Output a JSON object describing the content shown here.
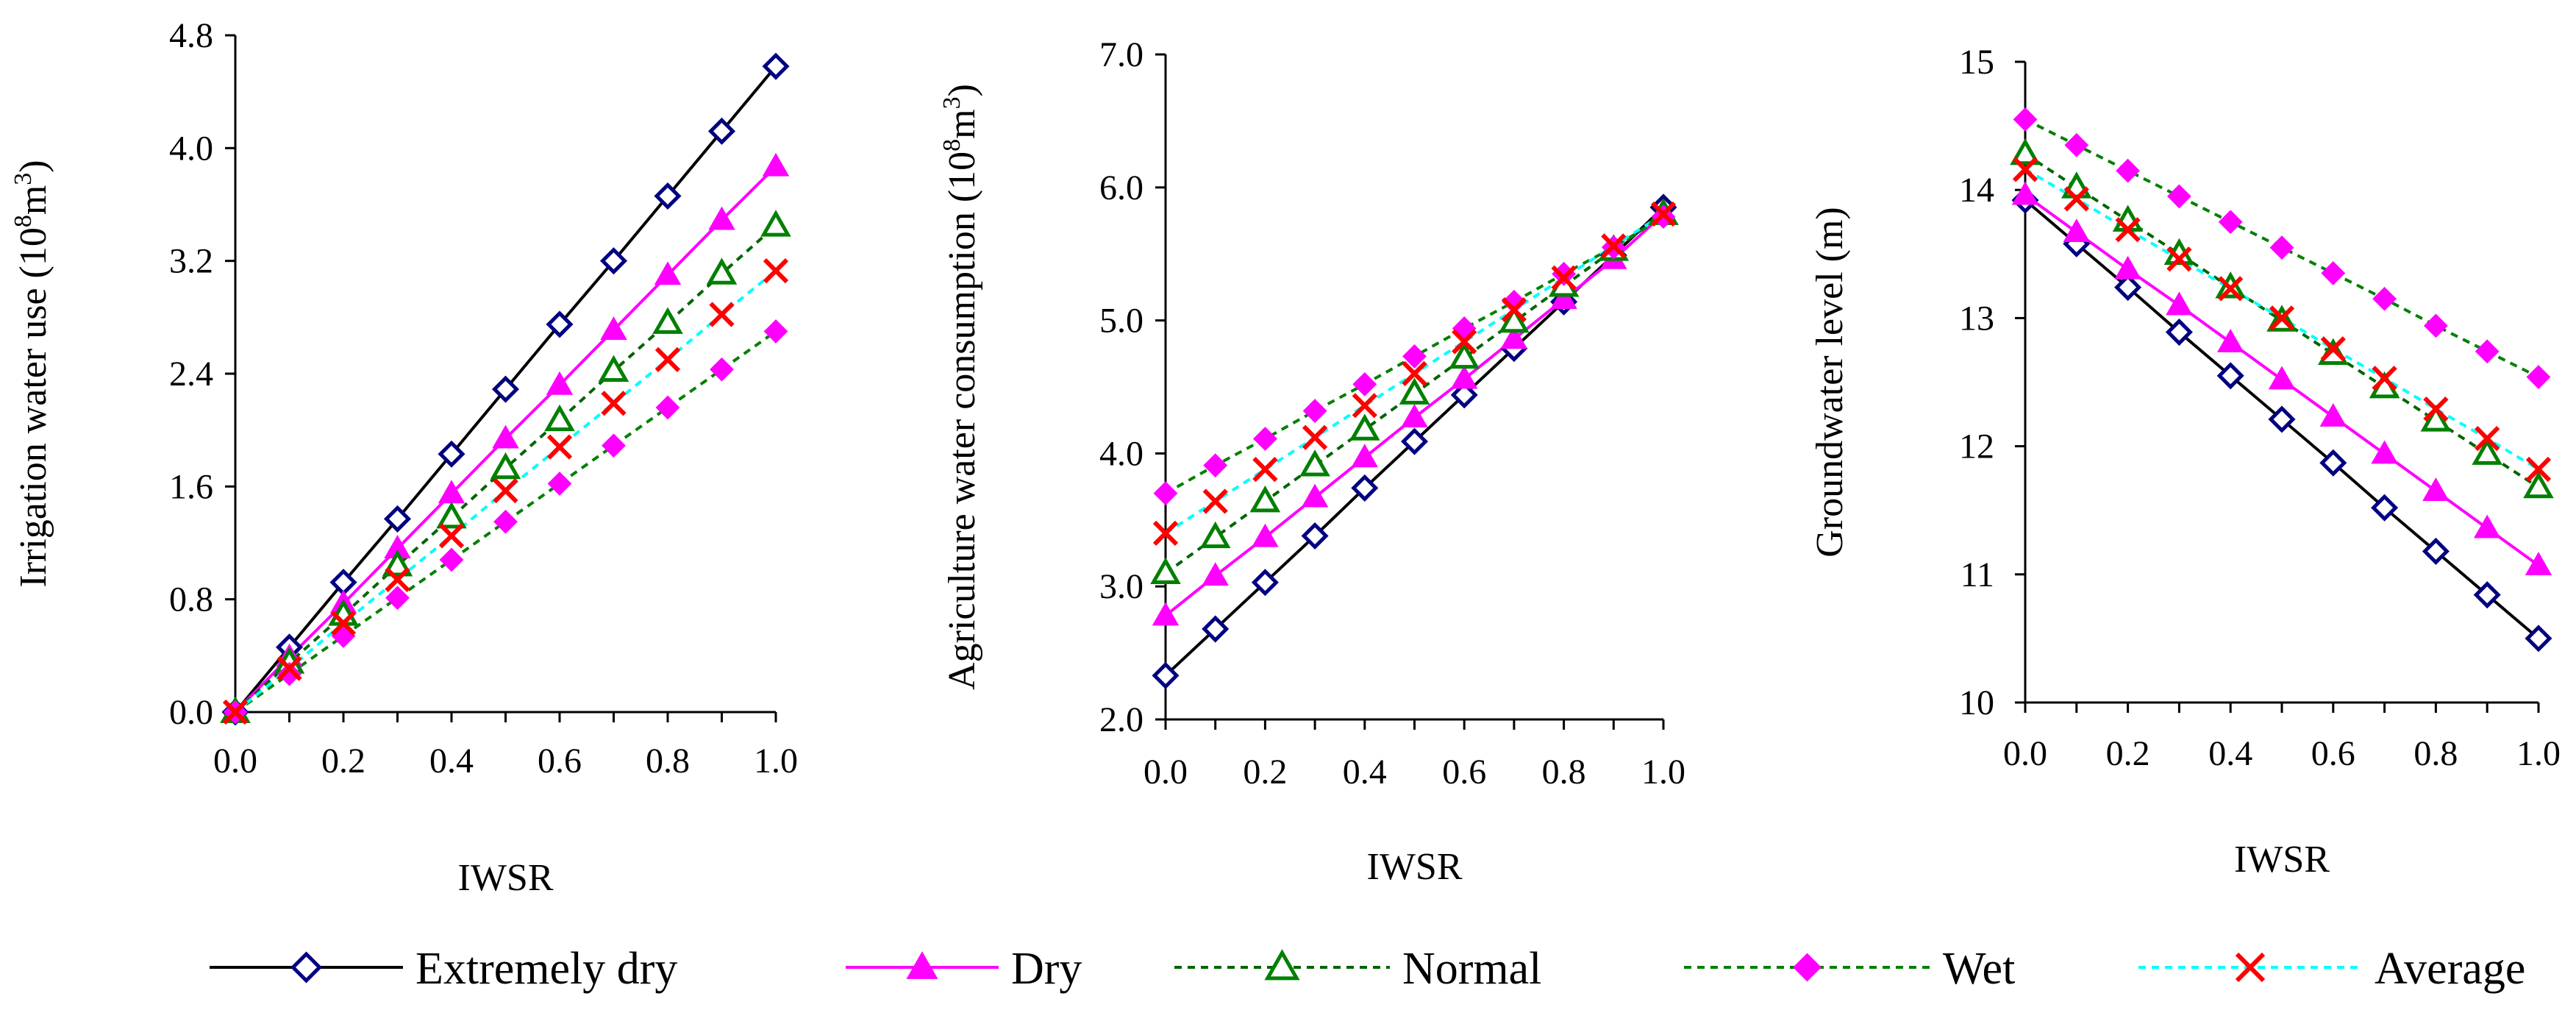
{
  "colors": {
    "extremely_dry": "#000080",
    "extremely_dry_line": "#000000",
    "dry": "#ff00ff",
    "normal_marker": "#008000",
    "normal_line": "#006400",
    "wet_marker": "#ff00ff",
    "wet_line": "#008000",
    "average_marker": "#ff0000",
    "average_line": "#00ffff"
  },
  "legend": {
    "items": [
      {
        "label": "Extremely dry",
        "marker": "diamond-open",
        "line": "solid"
      },
      {
        "label": "Dry",
        "marker": "triangle-filled",
        "line": "solid"
      },
      {
        "label": "Normal",
        "marker": "triangle-open",
        "line": "dashed"
      },
      {
        "label": "Wet",
        "marker": "diamond-filled",
        "line": "dashed"
      },
      {
        "label": "Average",
        "marker": "x",
        "line": "dashed"
      }
    ]
  },
  "chart_data": [
    {
      "type": "line",
      "title": "",
      "xlabel": "IWSR",
      "ylabel_main": "Irrigation water use (10",
      "ylabel_sup1": "8",
      "ylabel_mid": "m",
      "ylabel_sup2": "3",
      "ylabel_end": ")",
      "xlim": [
        0,
        1
      ],
      "ylim": [
        0,
        4.8
      ],
      "xticks": [
        "0.0",
        "0.2",
        "0.4",
        "0.6",
        "0.8",
        "1.0"
      ],
      "yticks": [
        "0.0",
        "0.8",
        "1.6",
        "2.4",
        "3.2",
        "4.0",
        "4.8"
      ],
      "x": [
        0,
        0.1,
        0.2,
        0.3,
        0.4,
        0.5,
        0.6,
        0.7,
        0.8,
        0.9,
        1.0
      ],
      "series": [
        {
          "name": "Extremely dry",
          "values": [
            0,
            0.46,
            0.92,
            1.37,
            1.83,
            2.29,
            2.75,
            3.2,
            3.66,
            4.12,
            4.58
          ]
        },
        {
          "name": "Dry",
          "values": [
            0,
            0.39,
            0.77,
            1.16,
            1.55,
            1.94,
            2.32,
            2.71,
            3.1,
            3.49,
            3.87
          ]
        },
        {
          "name": "Normal",
          "values": [
            0,
            0.35,
            0.69,
            1.04,
            1.38,
            1.73,
            2.07,
            2.42,
            2.76,
            3.11,
            3.45
          ]
        },
        {
          "name": "Wet",
          "values": [
            0,
            0.27,
            0.54,
            0.81,
            1.08,
            1.35,
            1.62,
            1.89,
            2.16,
            2.43,
            2.7
          ]
        },
        {
          "name": "Average",
          "values": [
            0,
            0.31,
            0.63,
            0.94,
            1.25,
            1.57,
            1.88,
            2.19,
            2.5,
            2.82,
            3.13
          ]
        }
      ]
    },
    {
      "type": "line",
      "title": "",
      "xlabel": "IWSR",
      "ylabel_main": "Agriculture water consumption (10",
      "ylabel_sup1": "8",
      "ylabel_mid": "m",
      "ylabel_sup2": "3",
      "ylabel_end": ")",
      "xlim": [
        0,
        1
      ],
      "ylim": [
        2,
        7
      ],
      "xticks": [
        "0.0",
        "0.2",
        "0.4",
        "0.6",
        "0.8",
        "1.0"
      ],
      "yticks": [
        "2.0",
        "3.0",
        "4.0",
        "5.0",
        "6.0",
        "7.0"
      ],
      "x": [
        0,
        0.1,
        0.2,
        0.3,
        0.4,
        0.5,
        0.6,
        0.7,
        0.8,
        0.9,
        1.0
      ],
      "series": [
        {
          "name": "Extremely dry",
          "values": [
            2.33,
            2.68,
            3.03,
            3.38,
            3.74,
            4.09,
            4.44,
            4.79,
            5.14,
            5.49,
            5.85
          ]
        },
        {
          "name": "Dry",
          "values": [
            2.78,
            3.08,
            3.37,
            3.67,
            3.97,
            4.27,
            4.56,
            4.86,
            5.16,
            5.46,
            5.8
          ]
        },
        {
          "name": "Normal",
          "values": [
            3.1,
            3.37,
            3.64,
            3.91,
            4.18,
            4.45,
            4.72,
            4.99,
            5.26,
            5.53,
            5.8
          ]
        },
        {
          "name": "Wet",
          "values": [
            3.7,
            3.91,
            4.11,
            4.32,
            4.52,
            4.73,
            4.94,
            5.14,
            5.35,
            5.55,
            5.78
          ]
        },
        {
          "name": "Average",
          "values": [
            3.4,
            3.64,
            3.88,
            4.12,
            4.36,
            4.6,
            4.84,
            5.08,
            5.32,
            5.56,
            5.8
          ]
        }
      ]
    },
    {
      "type": "line",
      "title": "",
      "xlabel": "IWSR",
      "ylabel_main": "Groundwater level (m)",
      "ylabel_sup1": "",
      "ylabel_mid": "",
      "ylabel_sup2": "",
      "ylabel_end": "",
      "xlim": [
        0,
        1
      ],
      "ylim": [
        10,
        15
      ],
      "xticks": [
        "0.0",
        "0.2",
        "0.4",
        "0.6",
        "0.8",
        "1.0"
      ],
      "yticks": [
        "10",
        "11",
        "12",
        "13",
        "14",
        "15"
      ],
      "x": [
        0,
        0.1,
        0.2,
        0.3,
        0.4,
        0.5,
        0.6,
        0.7,
        0.8,
        0.9,
        1.0
      ],
      "series": [
        {
          "name": "Extremely dry",
          "values": [
            13.92,
            13.58,
            13.24,
            12.89,
            12.55,
            12.21,
            11.87,
            11.52,
            11.18,
            10.84,
            10.5
          ]
        },
        {
          "name": "Dry",
          "values": [
            13.96,
            13.67,
            13.38,
            13.1,
            12.81,
            12.52,
            12.23,
            11.94,
            11.65,
            11.36,
            11.07
          ]
        },
        {
          "name": "Normal",
          "values": [
            14.28,
            14.02,
            13.76,
            13.5,
            13.24,
            12.98,
            12.72,
            12.46,
            12.2,
            11.94,
            11.68
          ]
        },
        {
          "name": "Wet",
          "values": [
            14.55,
            14.35,
            14.15,
            13.95,
            13.75,
            13.55,
            13.35,
            13.15,
            12.94,
            12.74,
            12.54
          ]
        },
        {
          "name": "Average",
          "values": [
            14.16,
            13.93,
            13.69,
            13.46,
            13.23,
            13.0,
            12.76,
            12.53,
            12.29,
            12.06,
            11.82
          ]
        }
      ]
    }
  ]
}
